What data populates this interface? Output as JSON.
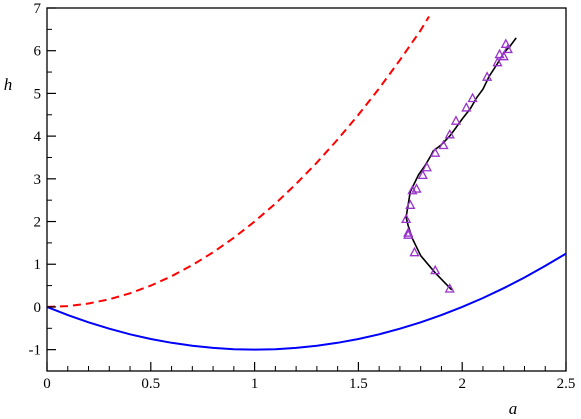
{
  "chart_data": {
    "type": "line",
    "xlabel": "a",
    "ylabel": "h",
    "xlim": [
      0,
      2.5
    ],
    "ylim": [
      -1.5,
      7
    ],
    "x_ticks": [
      0,
      0.5,
      1,
      1.5,
      2,
      2.5
    ],
    "x_tick_labels": [
      "0",
      "0.5",
      "1",
      "1.5",
      "2",
      "2.5"
    ],
    "y_ticks": [
      -1,
      0,
      1,
      2,
      3,
      4,
      5,
      6,
      7
    ],
    "y_tick_labels": [
      "-1",
      "0",
      "1",
      "2",
      "3",
      "4",
      "5",
      "6",
      "7"
    ],
    "grid": false,
    "series": [
      {
        "style": "dashed",
        "color": "#ff0000",
        "x": [
          0,
          0.1,
          0.2,
          0.3,
          0.4,
          0.5,
          0.6,
          0.7,
          0.8,
          0.9,
          1.0,
          1.1,
          1.2,
          1.3,
          1.4,
          1.5,
          1.6,
          1.7,
          1.8,
          1.84
        ],
        "y": [
          0,
          0.02,
          0.08,
          0.18,
          0.32,
          0.5,
          0.72,
          0.98,
          1.28,
          1.62,
          2.0,
          2.42,
          2.88,
          3.38,
          3.92,
          4.5,
          5.12,
          5.78,
          6.48,
          6.8
        ]
      },
      {
        "style": "solid",
        "color": "#0000ff",
        "x": [
          0,
          0.1,
          0.2,
          0.3,
          0.4,
          0.5,
          0.6,
          0.7,
          0.8,
          0.9,
          1.0,
          1.1,
          1.2,
          1.3,
          1.4,
          1.5,
          1.6,
          1.7,
          1.8,
          1.9,
          2.0,
          2.1,
          2.2,
          2.3,
          2.4,
          2.5
        ],
        "y": [
          0,
          -0.19,
          -0.36,
          -0.51,
          -0.64,
          -0.75,
          -0.84,
          -0.91,
          -0.96,
          -0.99,
          -1.0,
          -0.99,
          -0.96,
          -0.91,
          -0.84,
          -0.75,
          -0.64,
          -0.51,
          -0.36,
          -0.19,
          0,
          0.21,
          0.44,
          0.69,
          0.96,
          1.25
        ]
      },
      {
        "style": "solid",
        "color": "#000000",
        "x": [
          1.95,
          1.87,
          1.8,
          1.76,
          1.74,
          1.73,
          1.74,
          1.75,
          1.77,
          1.79,
          1.82,
          1.85,
          1.86,
          1.9,
          1.94,
          1.97,
          2.0,
          2.04,
          2.07,
          2.1,
          2.13,
          2.17,
          2.2,
          2.23,
          2.26
        ],
        "y": [
          0.4,
          0.8,
          1.2,
          1.6,
          1.9,
          2.1,
          2.4,
          2.7,
          2.9,
          3.1,
          3.3,
          3.55,
          3.65,
          3.8,
          4.0,
          4.2,
          4.4,
          4.65,
          4.9,
          5.1,
          5.4,
          5.7,
          5.95,
          6.1,
          6.3
        ]
      },
      {
        "style": "markers",
        "marker": "triangle",
        "color": "#9933cc",
        "x": [
          1.94,
          1.87,
          1.77,
          1.74,
          1.74,
          1.73,
          1.75,
          1.76,
          1.78,
          1.81,
          1.83,
          1.87,
          1.91,
          1.94,
          1.97,
          2.02,
          2.05,
          2.12,
          2.17,
          2.18,
          2.2,
          2.22,
          2.21
        ],
        "y": [
          0.42,
          0.85,
          1.27,
          1.68,
          1.73,
          2.05,
          2.38,
          2.72,
          2.76,
          3.08,
          3.26,
          3.6,
          3.78,
          4.03,
          4.35,
          4.66,
          4.88,
          5.38,
          5.72,
          5.91,
          5.86,
          6.03,
          6.15
        ]
      }
    ]
  }
}
